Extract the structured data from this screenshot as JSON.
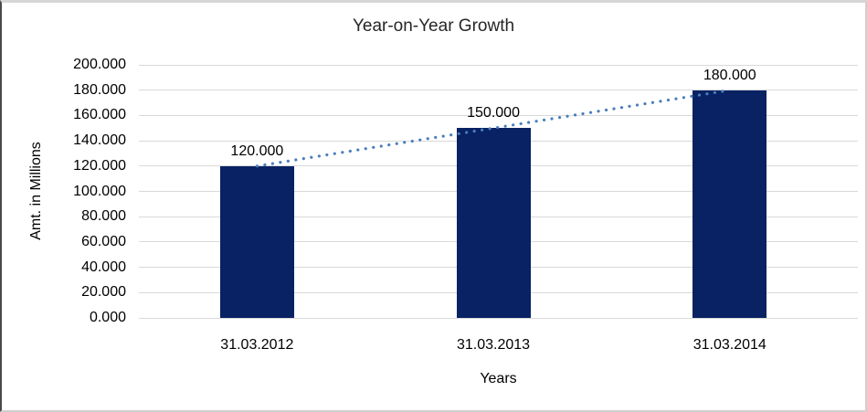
{
  "chart_data": {
    "type": "bar",
    "title": "Year-on-Year Growth",
    "xlabel": "Years",
    "ylabel": "Amt. in Millions",
    "categories": [
      "31.03.2012",
      "31.03.2013",
      "31.03.2014"
    ],
    "values": [
      120,
      150,
      180
    ],
    "value_labels": [
      "120.000",
      "150.000",
      "180.000"
    ],
    "ylim": [
      0,
      200
    ],
    "ytick_values": [
      0,
      20,
      40,
      60,
      80,
      100,
      120,
      140,
      160,
      180,
      200
    ],
    "ytick_labels": [
      "0.000",
      "20.000",
      "40.000",
      "60.000",
      "80.000",
      "100.000",
      "120.000",
      "140.000",
      "160.000",
      "180.000",
      "200.000"
    ],
    "grid": "horizontal",
    "legend": "none",
    "trendline": {
      "type": "linear",
      "style": "dotted",
      "from_value": 120,
      "to_value": 180
    },
    "colors": {
      "bar": "#082263",
      "trendline": "#4a7ebb",
      "gridline": "#d9d9d9",
      "text": "#000000",
      "title_text": "#262626",
      "background": "#ffffff"
    }
  }
}
